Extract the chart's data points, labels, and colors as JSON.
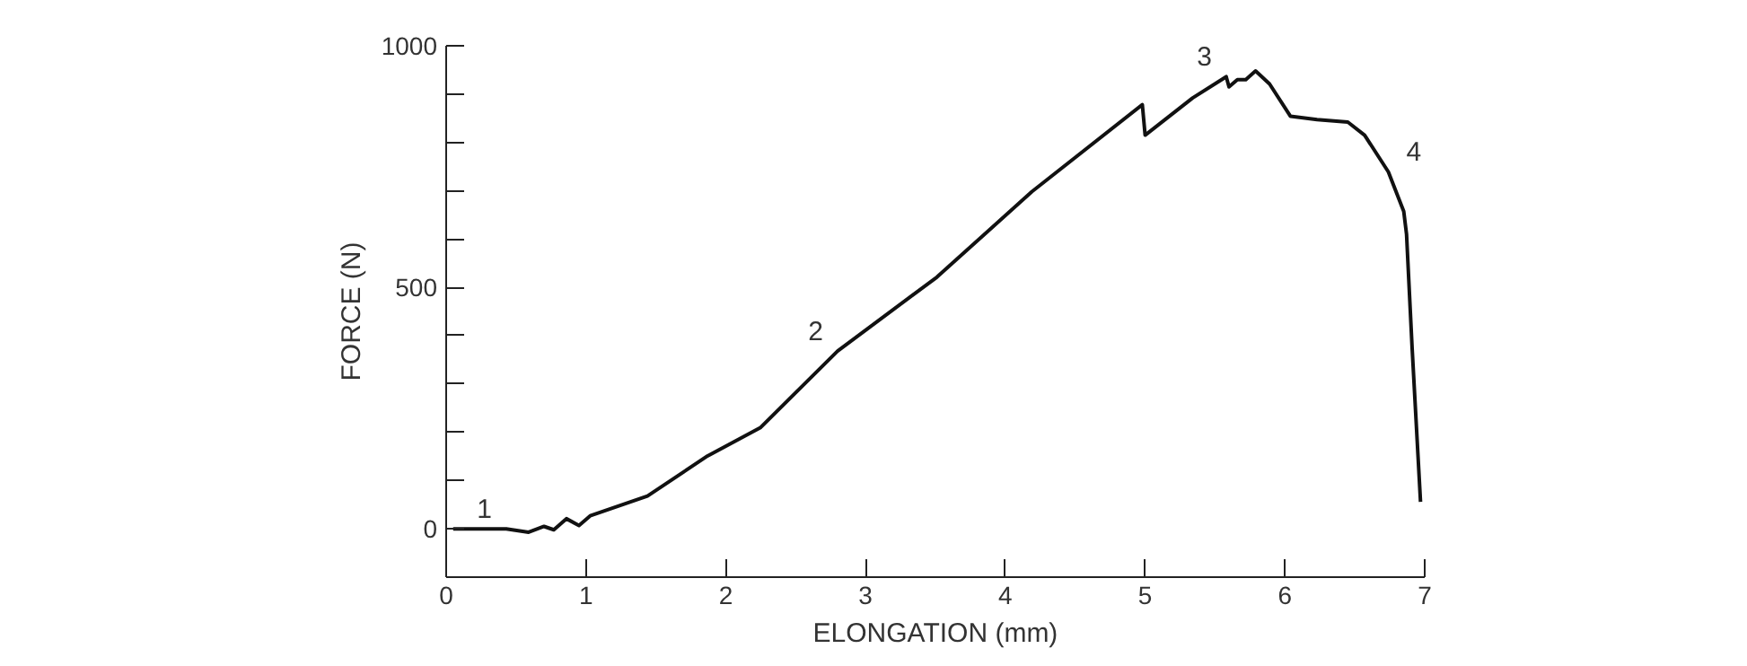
{
  "chart_data": {
    "type": "line",
    "xlabel": "ELONGATION (mm)",
    "ylabel": "FORCE (N)",
    "xlim": [
      0,
      7
    ],
    "ylim": [
      -100,
      1000
    ],
    "xticks": [
      0,
      1,
      2,
      3,
      4,
      5,
      6,
      7
    ],
    "yticks": [
      0,
      {
        "value": 100,
        "label": null
      },
      {
        "value": 200,
        "label": null
      },
      {
        "value": 300,
        "label": null
      },
      {
        "value": 400,
        "label": null
      },
      500,
      {
        "value": 600,
        "label": null
      },
      {
        "value": 700,
        "label": null
      },
      {
        "value": 800,
        "label": null
      },
      {
        "value": 900,
        "label": null
      },
      1000
    ],
    "grid": false,
    "line_style": "solid",
    "marker": "none",
    "series": [
      {
        "color": "#111111",
        "x": [
          0.05,
          0.43,
          0.59,
          0.7,
          0.77,
          0.86,
          0.95,
          1.03,
          1.44,
          1.87,
          2.25,
          2.8,
          3.51,
          4.19,
          4.98,
          5.0,
          5.34,
          5.58,
          5.6,
          5.66,
          5.72,
          5.79,
          5.89,
          6.04,
          6.23,
          6.45,
          6.57,
          6.74,
          6.85,
          6.87,
          6.91,
          6.97
        ],
        "values": [
          0,
          0,
          -7,
          5,
          -2,
          21,
          7,
          27,
          68,
          151,
          210,
          368,
          521,
          698,
          878,
          815,
          892,
          936,
          915,
          930,
          930,
          948,
          921,
          854,
          847,
          842,
          815,
          739,
          657,
          610,
          374,
          56
        ]
      }
    ],
    "annotations": [
      {
        "text": "1",
        "x": 0.43,
        "y": 0
      },
      {
        "text": "2",
        "x": 2.8,
        "y": 368
      },
      {
        "text": "3",
        "x": 5.58,
        "y": 936
      },
      {
        "text": "4",
        "x": 6.74,
        "y": 739
      }
    ]
  }
}
